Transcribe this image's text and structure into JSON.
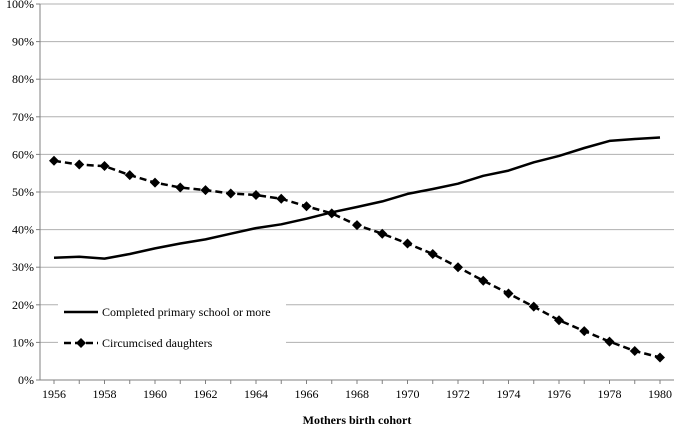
{
  "chart_data": {
    "type": "line",
    "title": "",
    "xlabel": "Mothers birth cohort",
    "ylabel": "",
    "x": [
      1956,
      1957,
      1958,
      1959,
      1960,
      1961,
      1962,
      1963,
      1964,
      1965,
      1966,
      1967,
      1968,
      1969,
      1970,
      1971,
      1972,
      1973,
      1974,
      1975,
      1976,
      1977,
      1978,
      1979,
      1980
    ],
    "xticks": [
      "1956",
      "1958",
      "1960",
      "1962",
      "1964",
      "1966",
      "1968",
      "1970",
      "1972",
      "1974",
      "1976",
      "1978",
      "1980"
    ],
    "ylim": [
      0,
      100
    ],
    "yticks": [
      "0%",
      "10%",
      "20%",
      "30%",
      "40%",
      "50%",
      "60%",
      "70%",
      "80%",
      "90%",
      "100%"
    ],
    "grid": true,
    "legend_position": "lower-left",
    "series": [
      {
        "name": "Completed primary school or more",
        "style": "solid",
        "marker": "none",
        "values": [
          32.5,
          32.8,
          32.3,
          33.5,
          35.0,
          36.3,
          37.4,
          38.9,
          40.4,
          41.4,
          42.9,
          44.6,
          46.0,
          47.5,
          49.5,
          50.8,
          52.2,
          54.3,
          55.7,
          57.9,
          59.6,
          61.7,
          63.6,
          64.1,
          64.5
        ]
      },
      {
        "name": "Circumcised daughters",
        "style": "dashed",
        "marker": "diamond",
        "values": [
          58.3,
          57.3,
          56.9,
          54.5,
          52.5,
          51.2,
          50.5,
          49.6,
          49.2,
          48.2,
          46.2,
          44.3,
          41.2,
          38.9,
          36.3,
          33.5,
          30.0,
          26.4,
          23.0,
          19.5,
          15.9,
          13.0,
          10.2,
          7.7,
          6.0
        ]
      }
    ],
    "colors": {
      "line": "#000000",
      "grid": "#b0b0b0",
      "axis": "#808080"
    }
  }
}
